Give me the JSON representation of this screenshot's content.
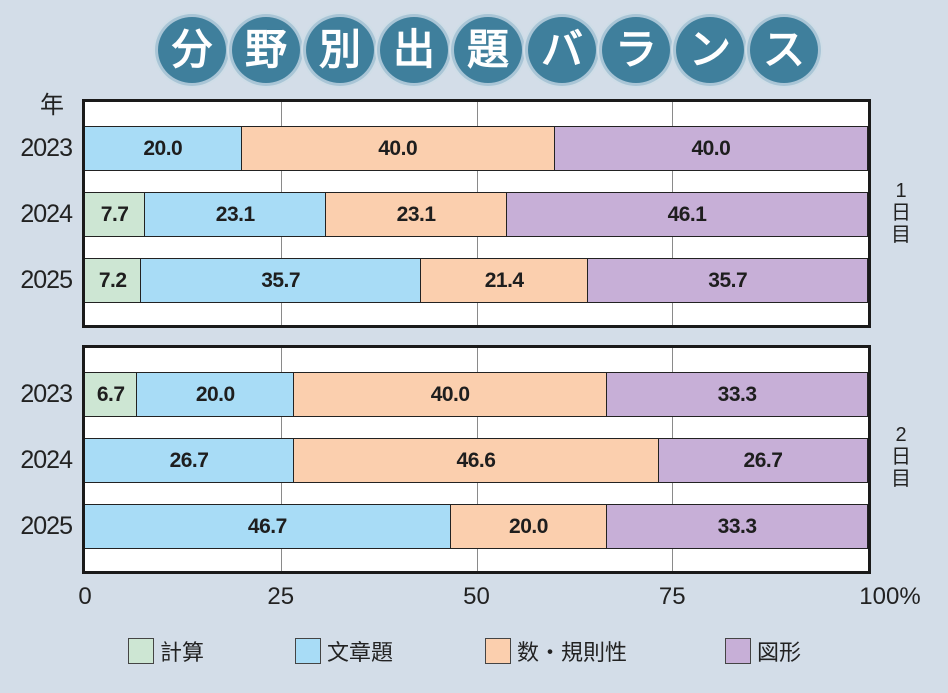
{
  "title_chars": [
    "分",
    "野",
    "別",
    "出",
    "題",
    "バ",
    "ラ",
    "ン",
    "ス"
  ],
  "colors": {
    "計算": "#cde6d3",
    "文章題": "#a8dcf6",
    "数・規則性": "#fbcfae",
    "図形": "#c7afd7",
    "background": "#d3dde8",
    "title_badge": "#3f7f9c"
  },
  "year_header": "年",
  "tick_labels": [
    "0",
    "25",
    "50",
    "75",
    "100%"
  ],
  "legend": [
    "計算",
    "文章題",
    "数・規則性",
    "図形"
  ],
  "chart_data": {
    "type": "bar",
    "orientation": "horizontal",
    "stacked": true,
    "title": "分野別出題バランス",
    "xlabel": "",
    "ylabel": "年",
    "xlim": [
      0,
      100
    ],
    "xticks": [
      0,
      25,
      50,
      75,
      100
    ],
    "grid": true,
    "legend_position": "bottom",
    "series_names": [
      "計算",
      "文章題",
      "数・規則性",
      "図形"
    ],
    "groups": [
      {
        "label": "1日目",
        "label_chars": [
          "1",
          "日",
          "目"
        ],
        "rows": [
          {
            "year": "2023",
            "values": [
              0,
              20.0,
              40.0,
              40.0
            ],
            "labels": [
              "",
              "20.0",
              "40.0",
              "40.0"
            ]
          },
          {
            "year": "2024",
            "values": [
              7.7,
              23.1,
              23.1,
              46.1
            ],
            "labels": [
              "7.7",
              "23.1",
              "23.1",
              "46.1"
            ]
          },
          {
            "year": "2025",
            "values": [
              7.2,
              35.7,
              21.4,
              35.7
            ],
            "labels": [
              "7.2",
              "35.7",
              "21.4",
              "35.7"
            ]
          }
        ]
      },
      {
        "label": "2日目",
        "label_chars": [
          "2",
          "日",
          "目"
        ],
        "rows": [
          {
            "year": "2023",
            "values": [
              6.7,
              20.0,
              40.0,
              33.3
            ],
            "labels": [
              "6.7",
              "20.0",
              "40.0",
              "33.3"
            ]
          },
          {
            "year": "2024",
            "values": [
              0,
              26.7,
              46.6,
              26.7
            ],
            "labels": [
              "",
              "26.7",
              "46.6",
              "26.7"
            ]
          },
          {
            "year": "2025",
            "values": [
              0,
              46.7,
              20.0,
              33.3
            ],
            "labels": [
              "",
              "46.7",
              "20.0",
              "33.3"
            ]
          }
        ]
      }
    ]
  }
}
